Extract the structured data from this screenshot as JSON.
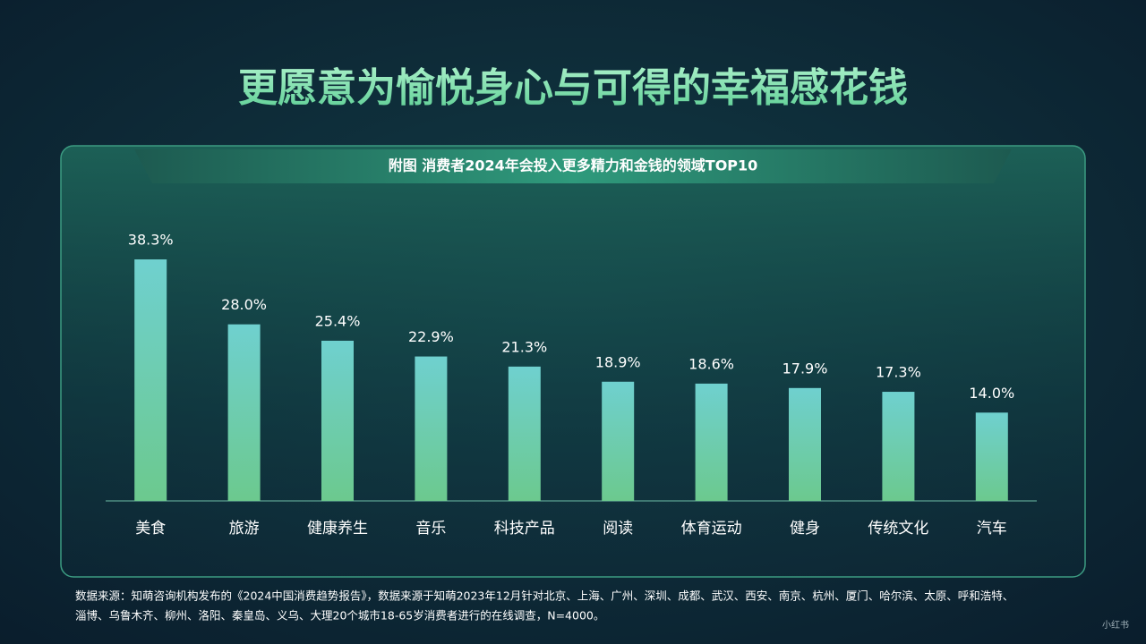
{
  "chart_data": {
    "type": "bar",
    "title": "更愿意为愉悦身心与可得的幸福感花钱",
    "subtitle": "附图  消费者2024年会投入更多精力和金钱的领域TOP10",
    "categories": [
      "美食",
      "旅游",
      "健康养生",
      "音乐",
      "科技产品",
      "阅读",
      "体育运动",
      "健身",
      "传统文化",
      "汽车"
    ],
    "values": [
      38.3,
      28.0,
      25.4,
      22.9,
      21.3,
      18.9,
      18.6,
      17.9,
      17.3,
      14.0
    ],
    "value_labels": [
      "38.3%",
      "28.0%",
      "25.4%",
      "22.9%",
      "21.3%",
      "18.9%",
      "18.6%",
      "17.9%",
      "17.3%",
      "14.0%"
    ],
    "color": "#6fd0c4",
    "source": [
      "数据来源：知萌咨询机构发布的《2024中国消费趋势报告》，数据来源于知萌2023年12月针对北京、上海、广州、深圳、成都、武汉、西安、南京、杭州、厦门、哈尔滨、太原、呼和浩特、",
      "淄博、乌鲁木齐、柳州、洛阳、秦皇岛、义乌、大理20个城市18-65岁消费者进行的在线调查，N=4000。"
    ],
    "watermark": "小红书"
  }
}
